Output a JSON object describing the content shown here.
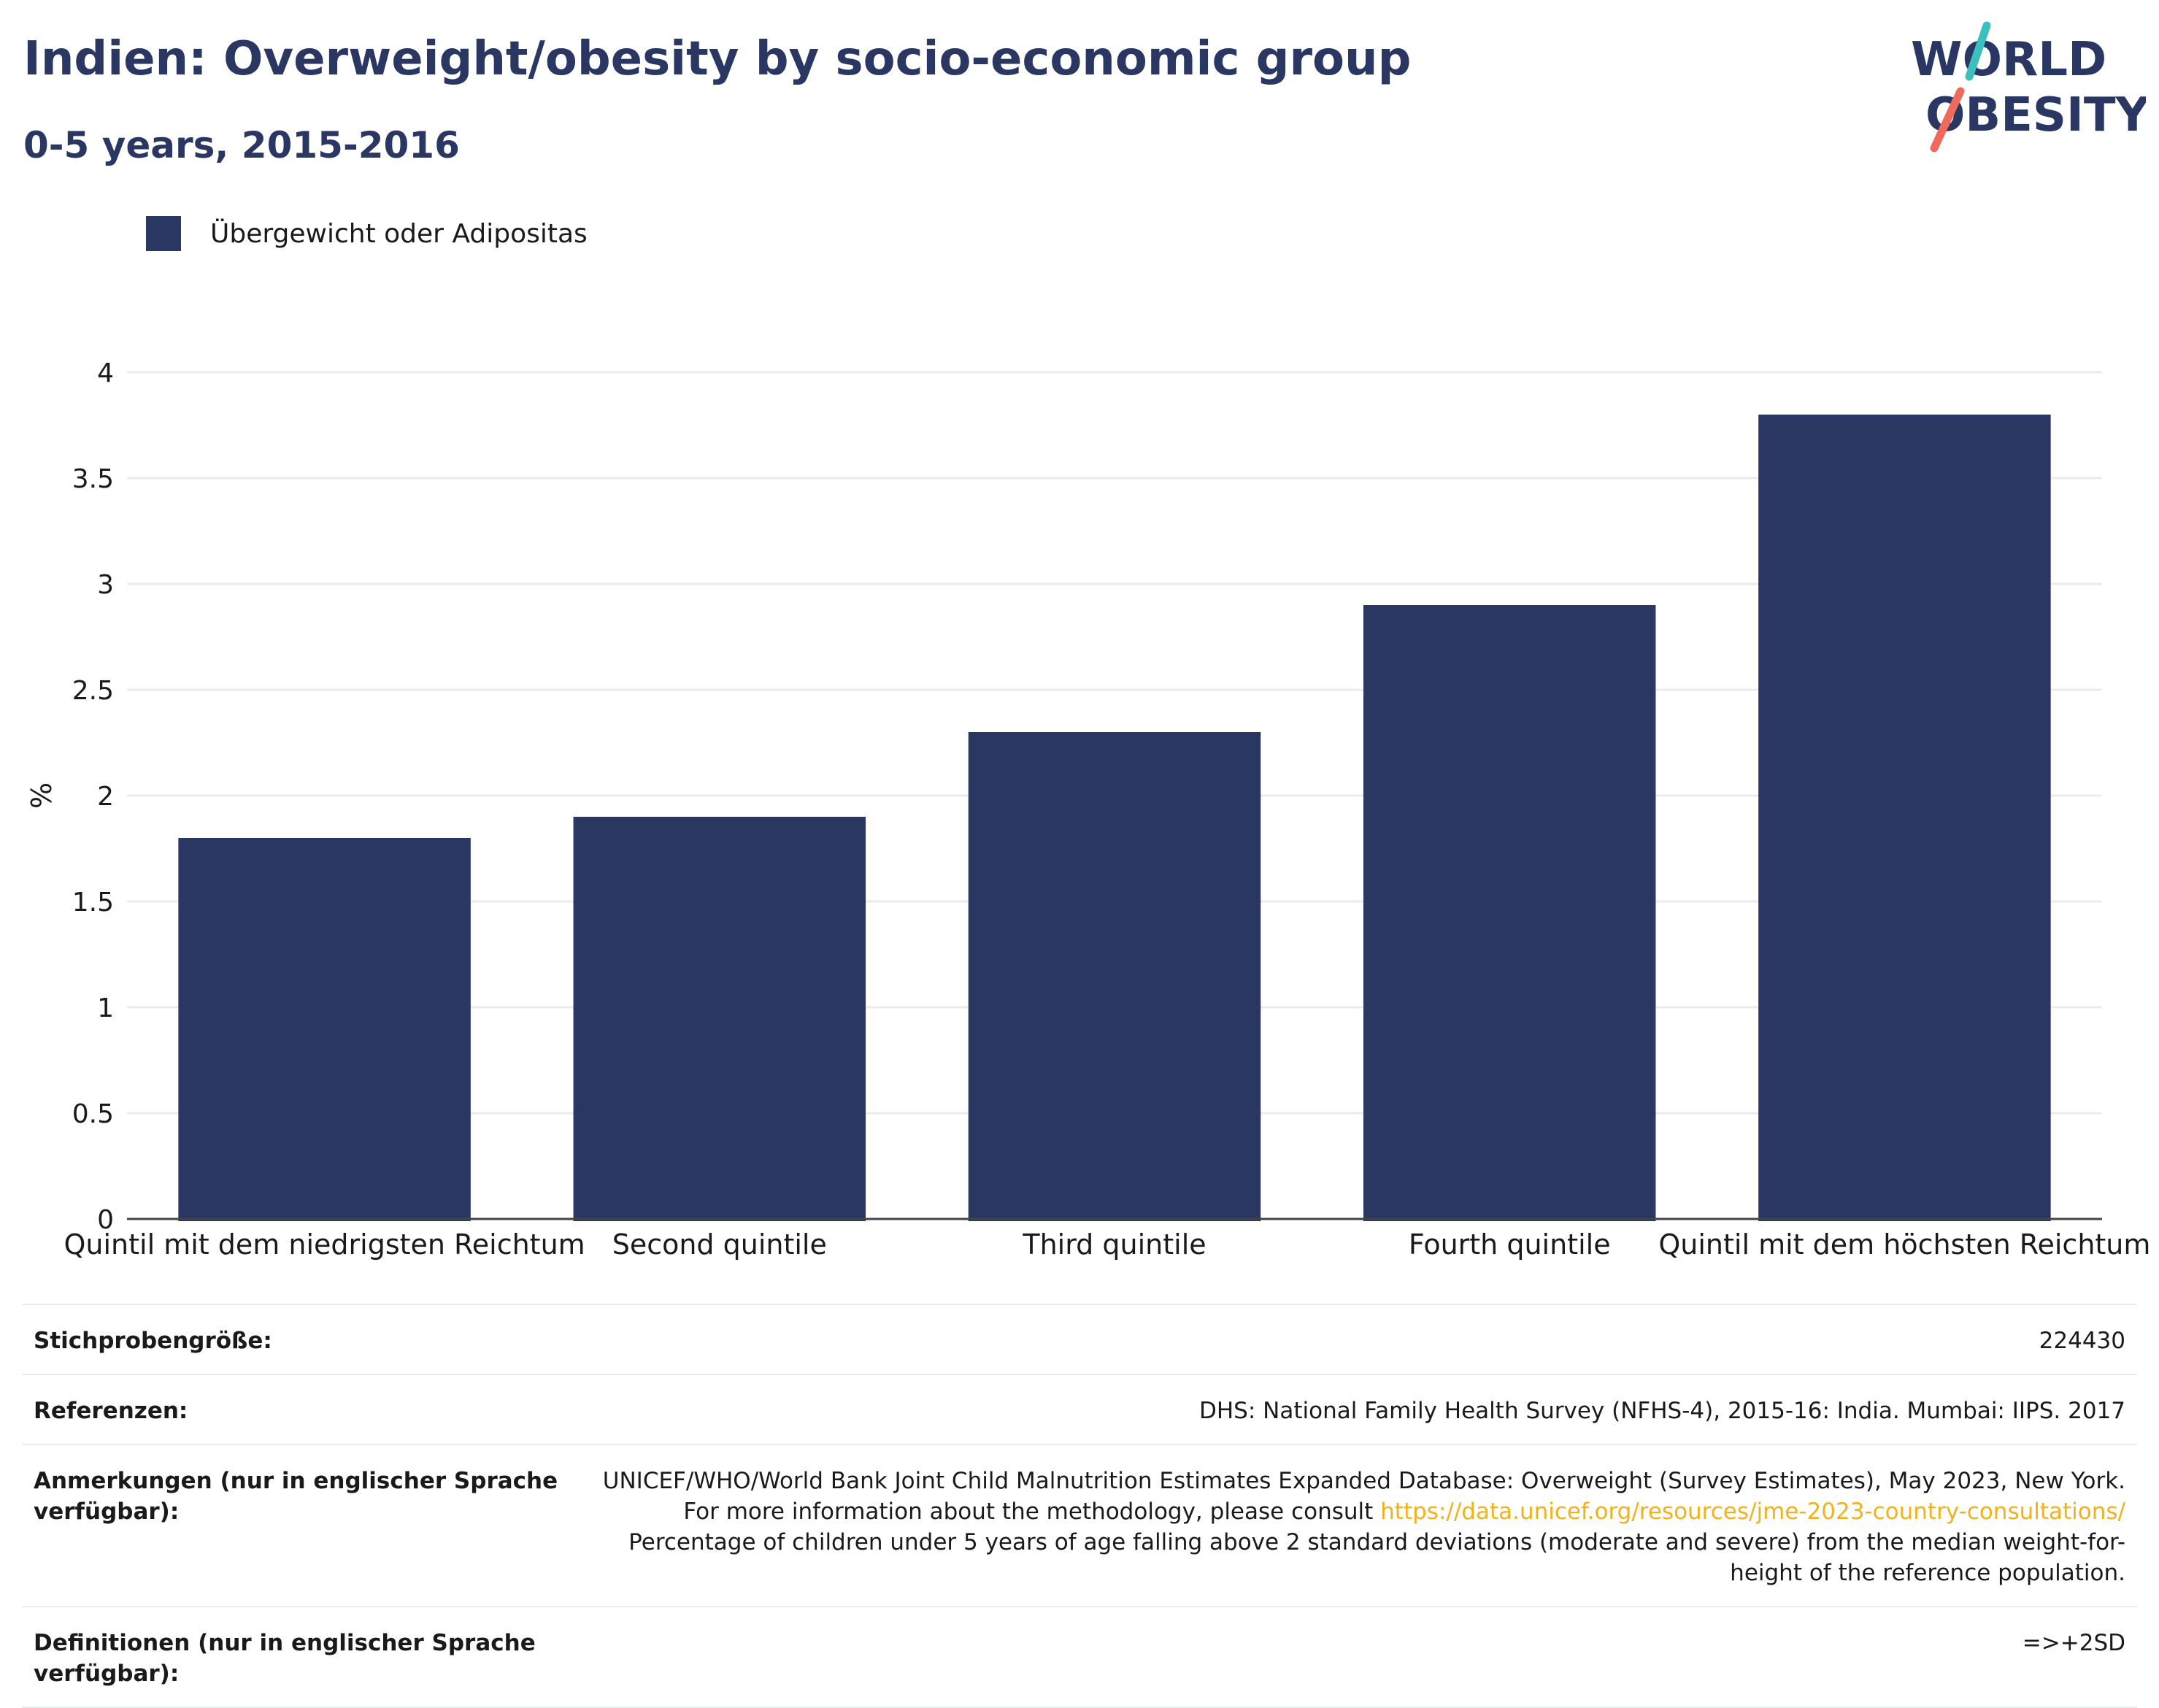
{
  "header": {
    "title": "Indien: Overweight/obesity by socio-economic group",
    "subtitle": "0-5 years, 2015-2016"
  },
  "logo": {
    "line1": "WORLD",
    "line2": "OBESITY",
    "slash_colors": [
      "#3cbfbf",
      "#ee6a5b"
    ],
    "text_color": "#2b3763"
  },
  "legend": {
    "label": "Übergewicht oder Adipositas",
    "color": "#2b3763"
  },
  "chart_data": {
    "type": "bar",
    "categories": [
      "Quintil mit dem niedrigsten Reichtum",
      "Second quintile",
      "Third quintile",
      "Fourth quintile",
      "Quintil mit dem höchsten Reichtum"
    ],
    "series": [
      {
        "name": "Übergewicht oder Adipositas",
        "values": [
          1.8,
          1.9,
          2.3,
          2.9,
          3.8
        ]
      }
    ],
    "ylabel": "%",
    "ylim": [
      0,
      4
    ],
    "yticks": [
      "0",
      "0.5",
      "1",
      "1.5",
      "2",
      "2.5",
      "3",
      "3.5",
      "4"
    ],
    "grid": true,
    "legend_position": "top-left",
    "bar_color": "#2b3763"
  },
  "meta": {
    "sample_label": "Stichprobengröße:",
    "sample_value": "224430",
    "references_label": "Referenzen:",
    "references_value": "DHS: National Family Health Survey (NFHS-4), 2015-16: India. Mumbai: IIPS. 2017",
    "notes_label": "Anmerkungen (nur in englischer Sprache verfügbar):",
    "notes_text_1": "UNICEF/WHO/World Bank Joint Child Malnutrition Estimates Expanded Database: Overweight (Survey Estimates), May 2023, New York. For more information about the methodology, please consult ",
    "notes_link": "https://data.unicef.org/resources/jme-2023-country-consultations/",
    "notes_text_2": "Percentage of children under 5 years of age falling above 2 standard deviations (moderate and severe) from the median weight-for-height of the reference population.",
    "definitions_label": "Definitionen (nur in englischer Sprache verfügbar):",
    "definitions_value": "=>+2SD"
  }
}
